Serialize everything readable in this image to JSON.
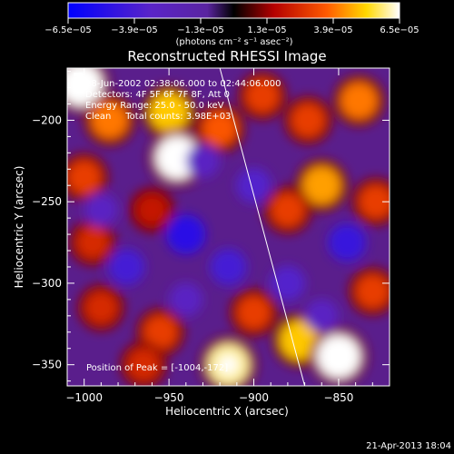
{
  "chart_data": {
    "type": "heatmap",
    "title": "Reconstructed RHESSI Image",
    "xlabel": "Heliocentric X (arcsec)",
    "ylabel": "Heliocentric Y (arcsec)",
    "x_ticks": [
      -1000,
      -950,
      -900,
      -850
    ],
    "y_ticks": [
      -200,
      -250,
      -300,
      -350
    ],
    "xlim": [
      -1010,
      -820
    ],
    "ylim": [
      -363,
      -168
    ],
    "colorbar": {
      "ticks": [
        "-6.5e-05",
        "-3.9e-05",
        "-1.3e-05",
        "1.3e-05",
        "3.9e-05",
        "6.5e-05"
      ],
      "range": [
        -6.5e-05,
        6.5e-05
      ],
      "units": "(photons cm⁻² s⁻¹ asec⁻²)"
    },
    "annotations": [
      "28-Jun-2002 02:38:06.000 to 02:44:06.000",
      "Detectors: 4F 5F 6F 7F 8F, Att 0",
      "Energy Range: 25.0 - 50.0 keV",
      "Clean     Total counts: 3.98E+03"
    ],
    "peak_label": "Position of Peak = [-1004,-172]",
    "peak_position": [
      -1004,
      -172
    ],
    "limb_line": [
      [
        -920,
        -168
      ],
      [
        -870,
        -363
      ]
    ],
    "blobs": [
      {
        "x": -1002,
        "y": -178,
        "value": 6.5e-05
      },
      {
        "x": -985,
        "y": -200,
        "value": 4e-05
      },
      {
        "x": -950,
        "y": -195,
        "value": 5e-05
      },
      {
        "x": -945,
        "y": -223,
        "value": 6.5e-05
      },
      {
        "x": -920,
        "y": -205,
        "value": 3.5e-05
      },
      {
        "x": -1000,
        "y": -235,
        "value": 3e-05
      },
      {
        "x": -960,
        "y": -255,
        "value": 2e-05
      },
      {
        "x": -895,
        "y": -185,
        "value": 3e-05
      },
      {
        "x": -868,
        "y": -200,
        "value": 3e-05
      },
      {
        "x": -838,
        "y": -188,
        "value": 4e-05
      },
      {
        "x": -860,
        "y": -240,
        "value": 4.5e-05
      },
      {
        "x": -880,
        "y": -255,
        "value": 3e-05
      },
      {
        "x": -995,
        "y": -275,
        "value": 2.5e-05
      },
      {
        "x": -990,
        "y": -315,
        "value": 2.5e-05
      },
      {
        "x": -955,
        "y": -330,
        "value": 3e-05
      },
      {
        "x": -915,
        "y": -350,
        "value": 6e-05
      },
      {
        "x": -900,
        "y": -318,
        "value": 3e-05
      },
      {
        "x": -873,
        "y": -335,
        "value": 5e-05
      },
      {
        "x": -850,
        "y": -345,
        "value": 6.5e-05
      },
      {
        "x": -830,
        "y": -305,
        "value": 3e-05
      },
      {
        "x": -828,
        "y": -250,
        "value": 3e-05
      },
      {
        "x": -965,
        "y": -350,
        "value": 2.5e-05
      },
      {
        "x": -940,
        "y": -270,
        "value": -5e-05
      },
      {
        "x": -975,
        "y": -290,
        "value": -4e-05
      },
      {
        "x": -915,
        "y": -290,
        "value": -4e-05
      },
      {
        "x": -900,
        "y": -240,
        "value": -3.5e-05
      },
      {
        "x": -845,
        "y": -275,
        "value": -4.5e-05
      },
      {
        "x": -880,
        "y": -300,
        "value": -3.5e-05
      },
      {
        "x": -990,
        "y": -255,
        "value": -3e-05
      },
      {
        "x": -930,
        "y": -225,
        "value": -3e-05
      },
      {
        "x": -860,
        "y": -320,
        "value": -3e-05
      },
      {
        "x": -940,
        "y": -310,
        "value": -3e-05
      }
    ]
  },
  "footer": {
    "timestamp": "21-Apr-2013 18:04"
  }
}
